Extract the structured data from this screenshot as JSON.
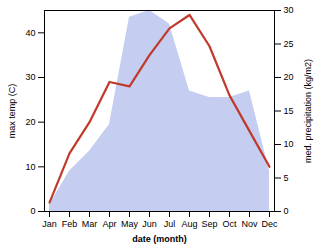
{
  "chart_data": {
    "type": "line",
    "xlabel": "date (month)",
    "ylabel": "max temp (C)",
    "y2label": "med. precipitation (kg/m2)",
    "categories": [
      "Jan",
      "Feb",
      "Mar",
      "Apr",
      "May",
      "Jun",
      "Jul",
      "Aug",
      "Sep",
      "Oct",
      "Nov",
      "Dec"
    ],
    "series": [
      {
        "type": "area",
        "axis": "y2",
        "color": "#c5cef0",
        "values": [
          1,
          6,
          9,
          13,
          29,
          30,
          28,
          18,
          17,
          17,
          18,
          6
        ]
      },
      {
        "type": "line",
        "axis": "y",
        "color": "#c0392b",
        "values": [
          2,
          13,
          20,
          29,
          28,
          35,
          41,
          44,
          37,
          26,
          18,
          10
        ]
      }
    ],
    "ylim": [
      0,
      45
    ],
    "yticks": [
      0,
      10,
      20,
      30,
      40
    ],
    "y2lim": [
      0,
      30
    ],
    "y2ticks": [
      0,
      5,
      10,
      15,
      20,
      25,
      30
    ],
    "grid": false
  }
}
